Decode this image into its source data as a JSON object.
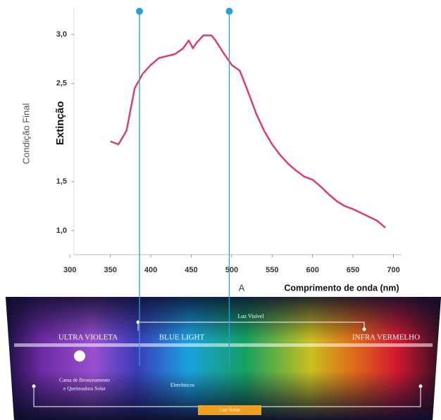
{
  "chart_data": {
    "type": "line",
    "y_label": "Condição Final",
    "y_label_2": "Extinção",
    "x_label_short": "A",
    "x_label": "Comprimento de onda (nm)",
    "xlim": [
      305,
      710
    ],
    "xticks": [
      300,
      350,
      400,
      450,
      500,
      550,
      600,
      650,
      700
    ],
    "ylim": [
      0.755,
      3.28
    ],
    "yticks": [
      {
        "value": 1.0,
        "label": "1,0"
      },
      {
        "value": 1.5,
        "label": "1,5"
      },
      {
        "value": 2.5,
        "label": "2,5"
      },
      {
        "value": 3.0,
        "label": "3,0"
      }
    ],
    "marker_lines": [
      386,
      497
    ],
    "marker_color": "#2a9fd6",
    "series": [
      {
        "color": "#d8406a",
        "x": [
          350,
          360,
          370,
          380,
          390,
          400,
          410,
          420,
          430,
          440,
          447,
          452,
          457,
          465,
          475,
          480,
          490,
          500,
          510,
          520,
          530,
          540,
          550,
          560,
          570,
          580,
          590,
          600,
          610,
          620,
          630,
          640,
          650,
          660,
          670,
          680,
          690
        ],
        "values": [
          1.91,
          1.88,
          2.02,
          2.45,
          2.6,
          2.69,
          2.76,
          2.78,
          2.8,
          2.86,
          2.94,
          2.86,
          2.92,
          2.99,
          2.99,
          2.94,
          2.81,
          2.69,
          2.63,
          2.42,
          2.2,
          2.02,
          1.88,
          1.77,
          1.68,
          1.61,
          1.55,
          1.52,
          1.45,
          1.37,
          1.3,
          1.25,
          1.22,
          1.18,
          1.14,
          1.1,
          1.03
        ]
      }
    ]
  },
  "spectrum": {
    "visible": "Luz Visível",
    "ultraviolet": "ULTRA VIOLETA",
    "blue_light": "BLUE LIGHT",
    "infrared": "INFRA VERMELHO",
    "uv_note": [
      "Cama de Bronzeamento",
      "e Queimadura Solar"
    ],
    "electronics": "Eletrônicos",
    "sunlight": "Luz Solar"
  }
}
